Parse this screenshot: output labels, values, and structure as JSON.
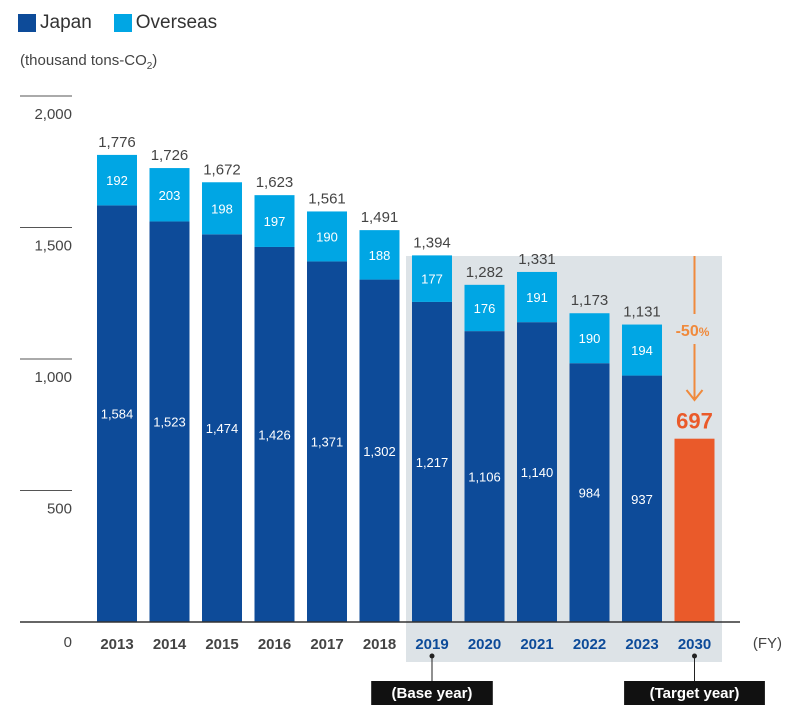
{
  "chart_data": {
    "type": "bar",
    "stacked": true,
    "unit": "(thousand tons-CO",
    "unit_sub": "2",
    "unit_close": ")",
    "xlabel": "(FY)",
    "ylim": [
      0,
      2000
    ],
    "yticks": [
      {
        "v": 0,
        "label": "0"
      },
      {
        "v": 500,
        "label": "500"
      },
      {
        "v": 1000,
        "label": "1,000"
      },
      {
        "v": 1500,
        "label": "1,500"
      },
      {
        "v": 2000,
        "label": "2,000"
      }
    ],
    "categories": [
      "2013",
      "2014",
      "2015",
      "2016",
      "2017",
      "2018",
      "2019",
      "2020",
      "2021",
      "2022",
      "2023",
      "2030"
    ],
    "series": [
      {
        "name": "Japan",
        "color": "#0d4b99",
        "values": [
          1584,
          1523,
          1474,
          1426,
          1371,
          1302,
          1217,
          1106,
          1140,
          984,
          937,
          null
        ],
        "labels": [
          "1,584",
          "1,523",
          "1,474",
          "1,426",
          "1,371",
          "1,302",
          "1,217",
          "1,106",
          "1,140",
          "984",
          "937",
          ""
        ]
      },
      {
        "name": "Overseas",
        "color": "#00a6e4",
        "values": [
          192,
          203,
          198,
          197,
          190,
          188,
          177,
          176,
          191,
          190,
          194,
          null
        ],
        "labels": [
          "192",
          "203",
          "198",
          "197",
          "190",
          "188",
          "177",
          "176",
          "191",
          "190",
          "194",
          ""
        ]
      }
    ],
    "totals": [
      "1,776",
      "1,726",
      "1,672",
      "1,623",
      "1,561",
      "1,491",
      "1,394",
      "1,282",
      "1,331",
      "1,173",
      "1,131",
      ""
    ],
    "target": {
      "category": "2030",
      "value": 697,
      "label": "697",
      "color": "#ea5a2a",
      "reduction_label": "-50",
      "reduction_unit": "%",
      "arrow_color": "#f08a3c"
    },
    "highlight_from": "2019",
    "highlight_color": "#dde3e7",
    "annotations": [
      {
        "category": "2019",
        "text": "(Base year)"
      },
      {
        "category": "2030",
        "text": "(Target year)"
      }
    ]
  }
}
